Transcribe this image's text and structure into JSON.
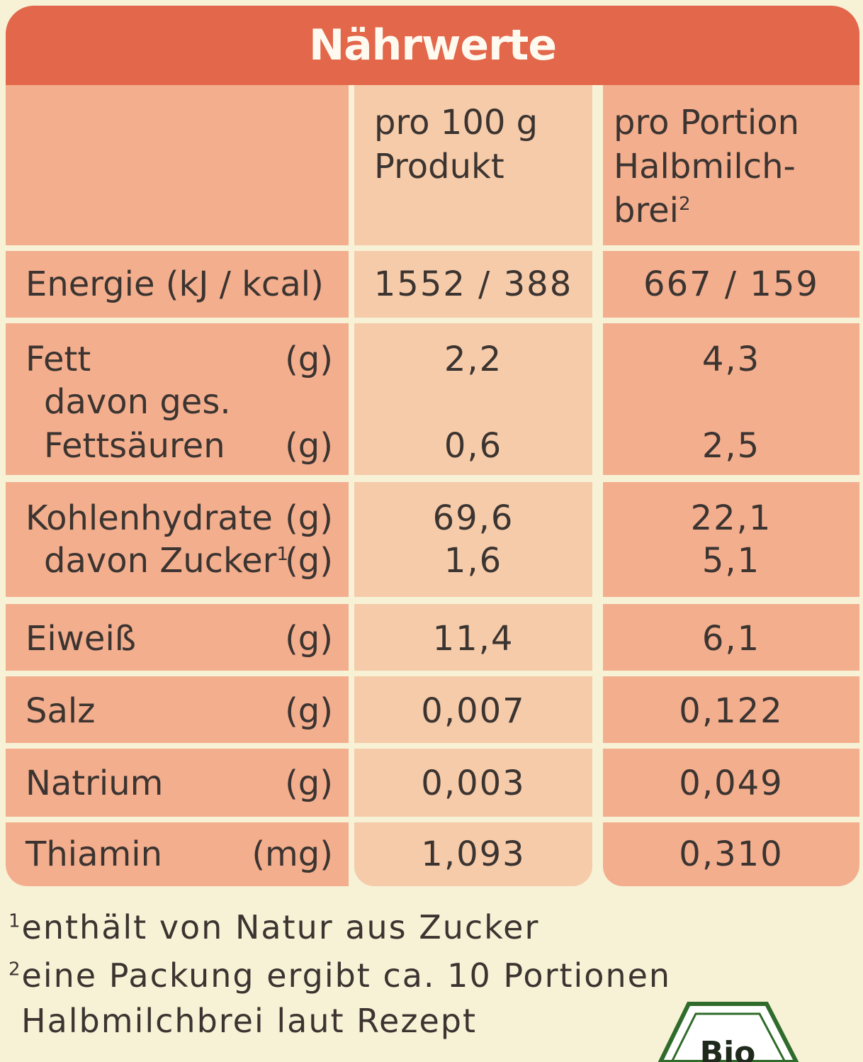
{
  "title": "Nährwerte",
  "columns": {
    "per_100g": [
      "pro 100 g",
      "Produkt"
    ],
    "per_portion": [
      "pro Portion",
      "Halbmilch-",
      "brei"
    ],
    "per_portion_sup": "2"
  },
  "rows": {
    "energie": {
      "label": "Energie (kJ / kcal)",
      "v100": "1552 / 388",
      "vport": "667 / 159"
    },
    "fett": {
      "label": "Fett",
      "unit": "(g)",
      "v100": "2,2",
      "vport": "4,3"
    },
    "fettsaeuren": {
      "label1": "davon ges.",
      "label2": "Fettsäuren",
      "unit": "(g)",
      "v100": "0,6",
      "vport": "2,5"
    },
    "kohlenhydrate": {
      "label": "Kohlenhydrate",
      "unit": "(g)",
      "v100": "69,6",
      "vport": "22,1"
    },
    "zucker": {
      "label": "davon Zucker",
      "sup": "1",
      "unit": "(g)",
      "v100": "1,6",
      "vport": "5,1"
    },
    "eiweiss": {
      "label": "Eiweiß",
      "unit": "(g)",
      "v100": "11,4",
      "vport": "6,1"
    },
    "salz": {
      "label": "Salz",
      "unit": "(g)",
      "v100": "0,007",
      "vport": "0,122"
    },
    "natrium": {
      "label": "Natrium",
      "unit": "(g)",
      "v100": "0,003",
      "vport": "0,049"
    },
    "thiamin": {
      "label": "Thiamin",
      "unit": "(mg)",
      "v100": "1,093",
      "vport": "0,310"
    }
  },
  "footnotes": {
    "f1_mark": "1",
    "f1_text": "enthält von Natur aus Zucker",
    "f2_mark": "2",
    "f2_text": "eine Packung ergibt ca. 10 Portionen",
    "f2_text2": "Halbmilchbrei laut Rezept"
  },
  "logo_text": "Bio",
  "colors": {
    "header": "#e3674a",
    "label_cell": "#f3ae8e",
    "per100_cell": "#f6cbaa",
    "background": "#f7f1d6"
  }
}
